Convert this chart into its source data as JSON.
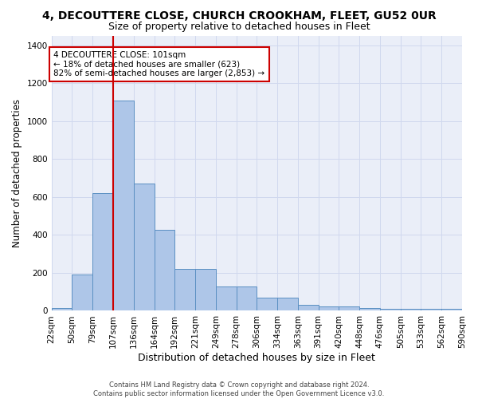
{
  "title": "4, DECOUTTERE CLOSE, CHURCH CROOKHAM, FLEET, GU52 0UR",
  "subtitle": "Size of property relative to detached houses in Fleet",
  "xlabel": "Distribution of detached houses by size in Fleet",
  "ylabel": "Number of detached properties",
  "bar_values": [
    15,
    190,
    620,
    1110,
    670,
    425,
    220,
    220,
    130,
    130,
    70,
    70,
    30,
    25,
    25,
    15,
    10,
    10,
    10,
    10
  ],
  "bar_labels": [
    "22sqm",
    "50sqm",
    "79sqm",
    "107sqm",
    "136sqm",
    "164sqm",
    "192sqm",
    "221sqm",
    "249sqm",
    "278sqm",
    "306sqm",
    "334sqm",
    "363sqm",
    "391sqm",
    "420sqm",
    "448sqm",
    "476sqm",
    "505sqm",
    "533sqm",
    "562sqm",
    "590sqm"
  ],
  "bar_color": "#aec6e8",
  "bar_edge_color": "#5a8fc2",
  "grid_color": "#d0d8ee",
  "bg_color": "#eaeef8",
  "vline_color": "#cc0000",
  "annotation_text": "4 DECOUTTERE CLOSE: 101sqm\n← 18% of detached houses are smaller (623)\n82% of semi-detached houses are larger (2,853) →",
  "annotation_box_color": "#ffffff",
  "annotation_box_edge": "#cc0000",
  "ylim": [
    0,
    1450
  ],
  "yticks": [
    0,
    200,
    400,
    600,
    800,
    1000,
    1200,
    1400
  ],
  "footnote": "Contains HM Land Registry data © Crown copyright and database right 2024.\nContains public sector information licensed under the Open Government Licence v3.0.",
  "title_fontsize": 10,
  "subtitle_fontsize": 9,
  "xlabel_fontsize": 9,
  "ylabel_fontsize": 8.5,
  "tick_fontsize": 7.5,
  "annot_fontsize": 7.5,
  "footnote_fontsize": 6
}
